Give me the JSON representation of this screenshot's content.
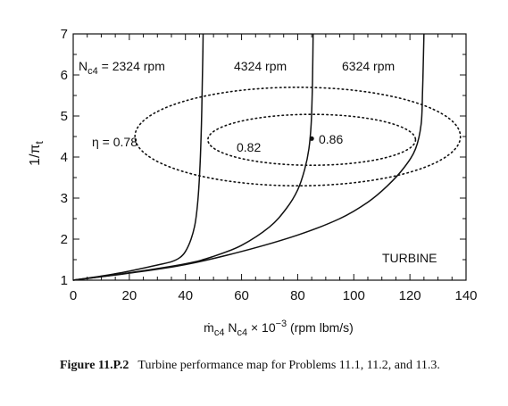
{
  "chart_data": {
    "type": "line",
    "title": "",
    "xlabel": "ṁc4 Nc4 × 10⁻³ (rpm lbm/s)",
    "ylabel": "1/πt",
    "xlim": [
      0,
      140
    ],
    "ylim": [
      1,
      7
    ],
    "x_ticks": [
      "0",
      "20",
      "40",
      "60",
      "80",
      "100",
      "120",
      "140"
    ],
    "y_ticks": [
      "1",
      "2",
      "3",
      "4",
      "5",
      "6",
      "7"
    ],
    "grid": false,
    "series": [
      {
        "name": "Nc4 = 2324 rpm",
        "x": [
          0,
          10,
          20,
          30,
          35,
          38,
          40,
          42,
          43.5,
          44.5,
          45.2,
          45.7,
          46,
          46.2,
          46.3
        ],
        "y": [
          1,
          1.1,
          1.22,
          1.37,
          1.45,
          1.55,
          1.7,
          2.0,
          2.4,
          3.0,
          3.8,
          4.8,
          5.8,
          6.5,
          7
        ]
      },
      {
        "name": "4324 rpm",
        "x": [
          0,
          20,
          40,
          50,
          60,
          70,
          76,
          80,
          82.5,
          84,
          84.8,
          85.2,
          85.4,
          85.5
        ],
        "y": [
          1,
          1.18,
          1.4,
          1.58,
          1.85,
          2.3,
          2.75,
          3.2,
          3.7,
          4.2,
          4.8,
          5.6,
          6.4,
          7
        ]
      },
      {
        "name": "6324 rpm",
        "x": [
          0,
          20,
          40,
          60,
          80,
          95,
          105,
          112,
          118,
          122,
          124,
          124.5,
          124.8,
          125
        ],
        "y": [
          1,
          1.17,
          1.38,
          1.7,
          2.1,
          2.5,
          2.9,
          3.3,
          3.75,
          4.2,
          4.8,
          5.6,
          6.4,
          7
        ]
      }
    ],
    "efficiency_contours": [
      {
        "label": "η = 0.78",
        "center": [
          80,
          4.5
        ],
        "semi_axes": [
          58,
          1.2
        ]
      },
      {
        "label": "0.82",
        "center": [
          85,
          4.42
        ],
        "semi_axes": [
          37,
          0.62
        ]
      }
    ],
    "points": [
      {
        "label": "0.86",
        "x": 85,
        "y": 4.45
      }
    ],
    "annotations": {
      "speed_line_1": "Nc4 = 2324 rpm",
      "speed_line_2": "4324 rpm",
      "speed_line_3": "6324 rpm",
      "eta_outer": "η = 0.78",
      "eta_inner": "0.82",
      "eta_peak": "0.86",
      "map_name": "TURBINE"
    }
  },
  "caption": {
    "figure_number": "Figure 11.P.2",
    "text": "Turbine performance map for Problems 11.1, 11.2, and 11.3."
  }
}
